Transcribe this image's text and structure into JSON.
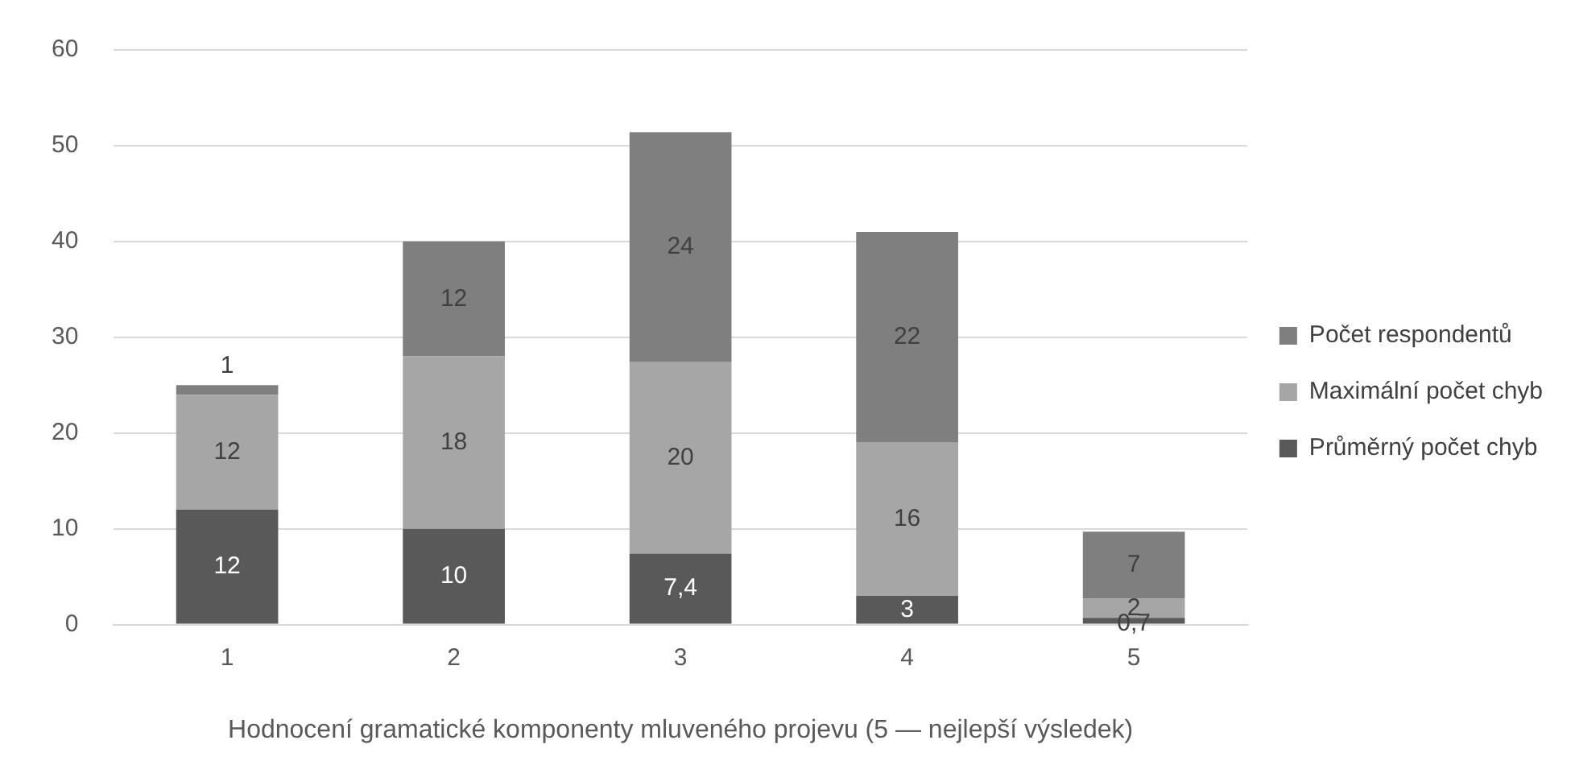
{
  "chart_data": {
    "type": "bar",
    "stacked": true,
    "xlabel": "Hodnocení gramatické komponenty mluveného projevu (5 — nejlepší výsledek)",
    "categories": [
      "1",
      "2",
      "3",
      "4",
      "5"
    ],
    "series": [
      {
        "name": "Průměrný počet chyb",
        "color": "#595959",
        "values": [
          12,
          10,
          7.4,
          3,
          0.7
        ],
        "value_labels": [
          "12",
          "10",
          "7,4",
          "3",
          "0,7"
        ]
      },
      {
        "name": "Maximální počet chyb",
        "color": "#a6a6a6",
        "values": [
          12,
          18,
          20,
          16,
          2
        ],
        "value_labels": [
          "12",
          "18",
          "20",
          "16",
          "2"
        ]
      },
      {
        "name": "Počet respondentů",
        "color": "#7f7f7f",
        "values": [
          1,
          12,
          24,
          22,
          7
        ],
        "value_labels": [
          "1",
          "12",
          "24",
          "22",
          "7"
        ]
      }
    ],
    "ylim": [
      0,
      60
    ],
    "yticks": [
      0,
      10,
      20,
      30,
      40,
      50,
      60
    ],
    "grid": "y",
    "legend": "right"
  }
}
